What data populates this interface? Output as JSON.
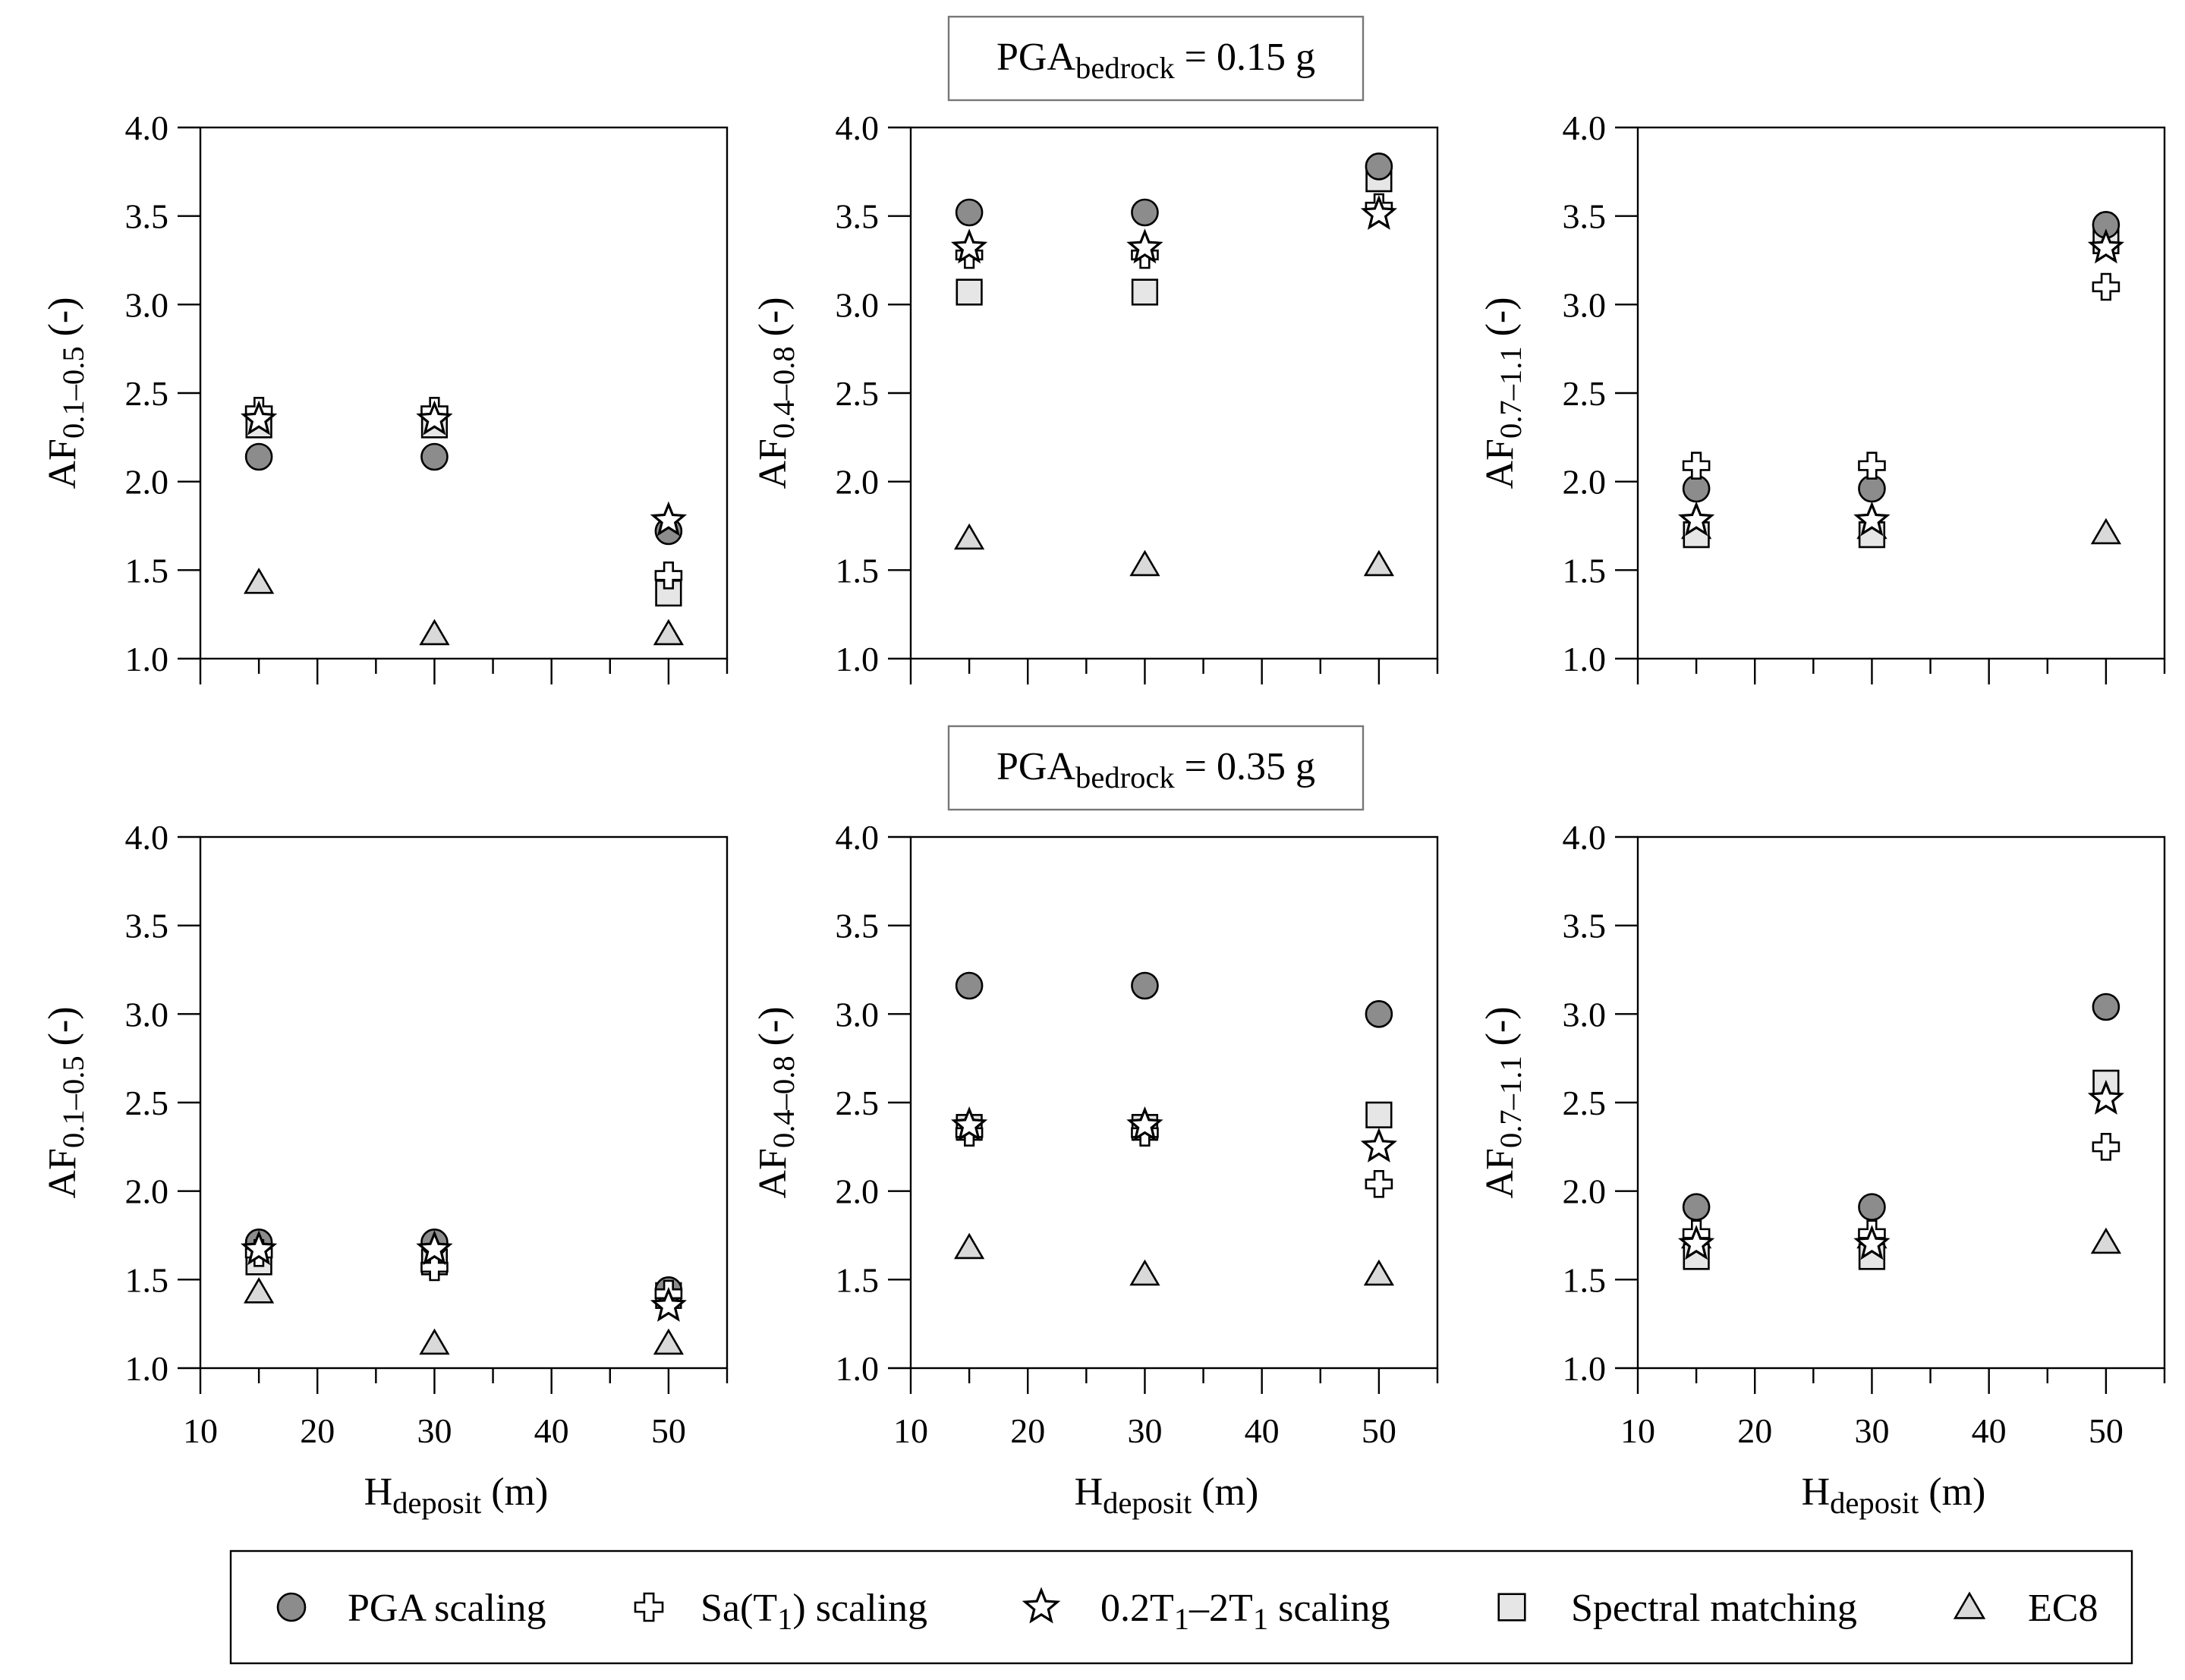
{
  "chart_data": {
    "type": "scatter",
    "layout": "2 rows x 3 columns",
    "row_headers": [
      {
        "main": "PGA",
        "sub": "bedrock",
        "rest": " = 0.15 g"
      },
      {
        "main": "PGA",
        "sub": "bedrock",
        "rest": " = 0.35 g"
      }
    ],
    "xlabel": {
      "main": "H",
      "sub": "deposit",
      "rest": " (m)"
    },
    "x_ticks": [
      10,
      20,
      30,
      40,
      50
    ],
    "x_minor_ticks": [
      15,
      25,
      35,
      45,
      55
    ],
    "xlim": [
      10,
      55
    ],
    "y_ticks": [
      1.0,
      1.5,
      2.0,
      2.5,
      3.0,
      3.5,
      4.0
    ],
    "y_tick_labels": [
      "1.0",
      "1.5",
      "2.0",
      "2.5",
      "3.0",
      "3.5",
      "4.0"
    ],
    "ylim": [
      1.0,
      4.0
    ],
    "ylabels": [
      {
        "main": "AF",
        "sub": "0.1–0.5",
        "rest": " (-)"
      },
      {
        "main": "AF",
        "sub": "0.4–0.8",
        "rest": " (-)"
      },
      {
        "main": "AF",
        "sub": "0.7–1.1",
        "rest": " (-)"
      }
    ],
    "x": [
      15,
      30,
      50
    ],
    "series": [
      {
        "key": "pga",
        "name": "PGA scaling",
        "marker": "circle",
        "fill": "#8c8c8c"
      },
      {
        "key": "sa",
        "name": "Sa(T1) scaling",
        "marker": "plus",
        "fill": "#ffffff"
      },
      {
        "key": "range",
        "name": "0.2T1–2T1 scaling",
        "marker": "star",
        "fill": "#ffffff"
      },
      {
        "key": "sm",
        "name": "Spectral matching",
        "marker": "square",
        "fill": "#e6e6e6"
      },
      {
        "key": "ec8",
        "name": "EC8",
        "marker": "triangle",
        "fill": "#d9d9d9"
      }
    ],
    "panels": [
      {
        "row": 0,
        "col": 0,
        "values": {
          "pga": [
            2.14,
            2.14,
            1.72
          ],
          "sa": [
            2.4,
            2.4,
            1.47
          ],
          "range": [
            2.35,
            2.35,
            1.78
          ],
          "sm": [
            2.32,
            2.32,
            1.37
          ],
          "ec8": [
            1.43,
            1.14,
            1.14
          ]
        }
      },
      {
        "row": 0,
        "col": 1,
        "values": {
          "pga": [
            3.52,
            3.52,
            3.78
          ],
          "sa": [
            3.28,
            3.28,
            3.55
          ],
          "range": [
            3.32,
            3.32,
            3.51
          ],
          "sm": [
            3.07,
            3.07,
            3.71
          ],
          "ec8": [
            1.68,
            1.53,
            1.53
          ]
        }
      },
      {
        "row": 0,
        "col": 2,
        "values": {
          "pga": [
            1.96,
            1.96,
            3.45
          ],
          "sa": [
            2.09,
            2.09,
            3.1
          ],
          "range": [
            1.78,
            1.78,
            3.32
          ],
          "sm": [
            1.7,
            1.7,
            3.36
          ],
          "ec8": [
            1.74,
            1.74,
            1.71
          ]
        }
      },
      {
        "row": 1,
        "col": 0,
        "values": {
          "pga": [
            1.71,
            1.71,
            1.44
          ],
          "sa": [
            1.65,
            1.57,
            1.42
          ],
          "range": [
            1.67,
            1.67,
            1.35
          ],
          "sm": [
            1.6,
            1.6,
            1.41
          ],
          "ec8": [
            1.43,
            1.14,
            1.14
          ]
        }
      },
      {
        "row": 1,
        "col": 1,
        "values": {
          "pga": [
            3.16,
            3.16,
            3.0
          ],
          "sa": [
            2.33,
            2.33,
            2.04
          ],
          "range": [
            2.37,
            2.37,
            2.25
          ],
          "sm": [
            2.36,
            2.36,
            2.43
          ],
          "ec8": [
            1.68,
            1.53,
            1.53
          ]
        }
      },
      {
        "row": 1,
        "col": 2,
        "values": {
          "pga": [
            1.91,
            1.91,
            3.04
          ],
          "sa": [
            1.76,
            1.76,
            2.25
          ],
          "range": [
            1.7,
            1.7,
            2.52
          ],
          "sm": [
            1.63,
            1.63,
            2.61
          ],
          "ec8": [
            1.74,
            1.74,
            1.71
          ]
        }
      }
    ],
    "legend": {
      "placement": "bottom",
      "entries": [
        {
          "marker": "circle",
          "text": "PGA scaling"
        },
        {
          "marker": "plus",
          "text": "Sa(T",
          "sub": "1",
          "after": ") scaling"
        },
        {
          "marker": "star",
          "text": "0.2T",
          "sub": "1",
          "mid": "–2T",
          "sub2": "1",
          "after": " scaling"
        },
        {
          "marker": "square",
          "text": "Spectral matching"
        },
        {
          "marker": "triangle",
          "text": "EC8"
        }
      ]
    }
  }
}
